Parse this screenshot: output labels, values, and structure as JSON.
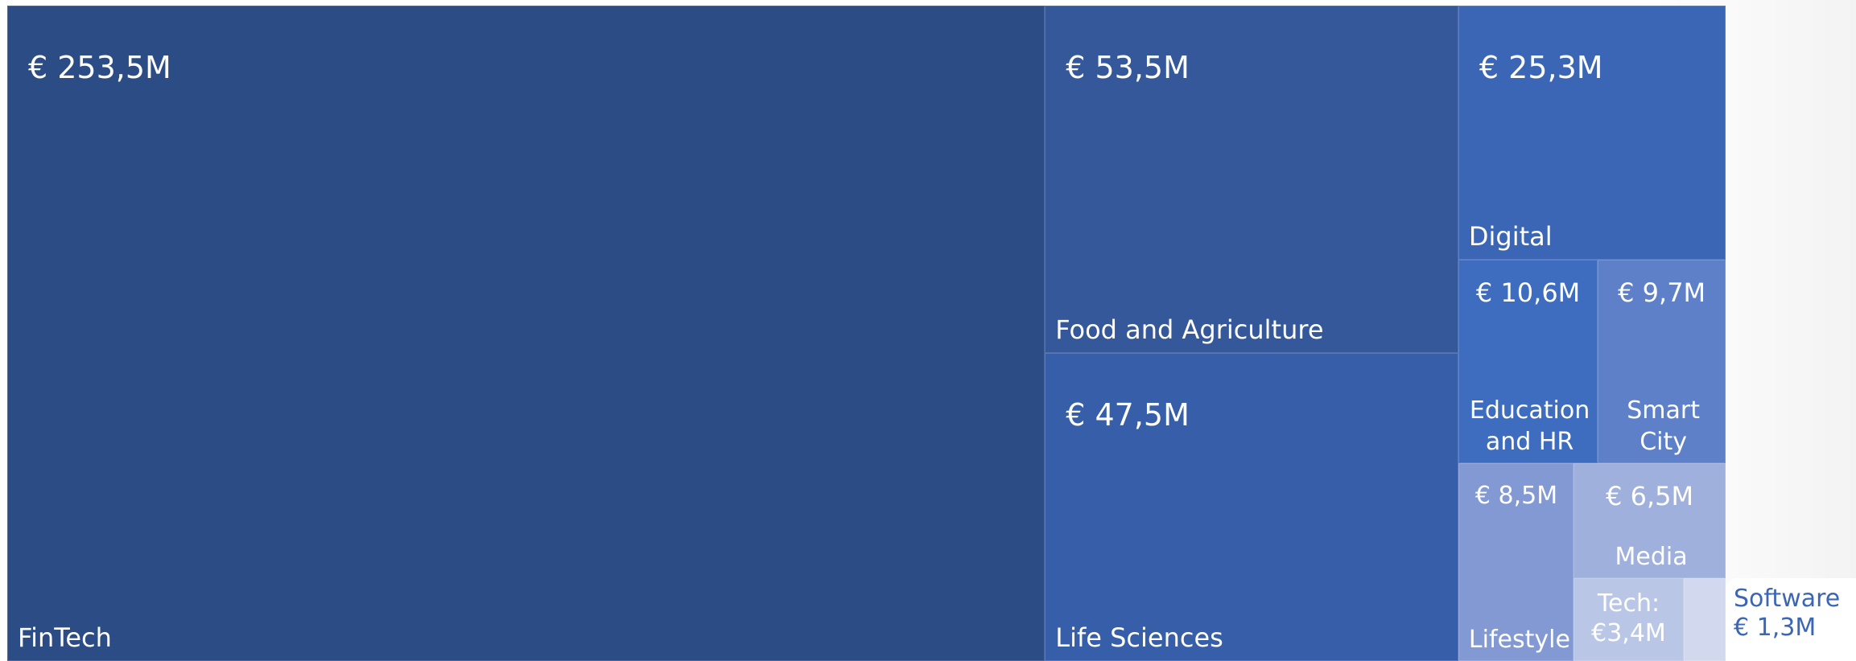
{
  "chart_data": {
    "type": "treemap",
    "categories": [
      "FinTech",
      "Food and Agriculture",
      "Life Sciences",
      "Digital",
      "Education and HR",
      "Smart City",
      "Lifestyle",
      "Media",
      "Tech:",
      "Software"
    ],
    "values": [
      253.5,
      53.5,
      47.5,
      25.3,
      10.6,
      9.7,
      8.5,
      6.5,
      3.4,
      1.3
    ],
    "value_labels": [
      "€ 253,5M",
      "€ 53,5M",
      "€ 47,5M",
      "€ 25,3M",
      "€ 10,6M",
      "€ 9,7M",
      "€ 8,5M",
      "€ 6,5M",
      "€3,4M",
      "€ 1,3M"
    ],
    "colors": [
      "#2b4c85",
      "#34589a",
      "#375ea8",
      "#3b66b5",
      "#3e6cbf",
      "#5e80c9",
      "#8399d4",
      "#a0b0dc",
      "#bac6e6",
      "#d2d8ee"
    ]
  }
}
